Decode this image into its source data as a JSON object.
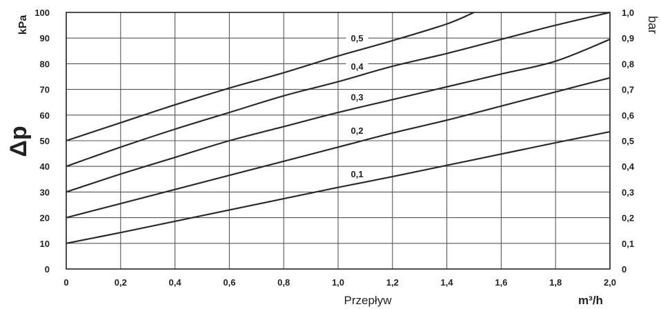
{
  "chart_data": {
    "type": "line",
    "xlabel": "Przepływ",
    "x_unit": "m³/h",
    "ylabel_left": "Δp",
    "ylabel_left_unit": "kPa",
    "ylabel_right_unit": "bar",
    "xlim": [
      0,
      2.0
    ],
    "ylim": [
      0,
      100
    ],
    "y2lim": [
      0,
      1.0
    ],
    "grid": true,
    "x_ticks": [
      "0",
      "0,2",
      "0,4",
      "0,6",
      "0,8",
      "1,0",
      "1,2",
      "1,4",
      "1,6",
      "1,8",
      "2,0"
    ],
    "y_ticks": [
      "0",
      "10",
      "20",
      "30",
      "40",
      "50",
      "60",
      "70",
      "80",
      "90",
      "100"
    ],
    "y2_ticks": [
      "0",
      "0,1",
      "0,2",
      "0,3",
      "0,4",
      "0,5",
      "0,6",
      "0,7",
      "0,8",
      "0,9",
      "1,0"
    ],
    "series": [
      {
        "name": "0,1",
        "x": [
          0,
          0.2,
          0.4,
          0.6,
          0.8,
          1.0,
          1.2,
          1.4,
          1.6,
          1.8,
          2.0
        ],
        "y": [
          10,
          14.2,
          18.6,
          23.0,
          27.4,
          31.8,
          36.0,
          40.4,
          44.8,
          49.2,
          53.5
        ]
      },
      {
        "name": "0,2",
        "x": [
          0,
          0.2,
          0.4,
          0.6,
          0.8,
          1.0,
          1.2,
          1.4,
          1.6,
          1.8,
          2.0
        ],
        "y": [
          20,
          25.5,
          31.0,
          36.5,
          42.0,
          47.5,
          53.0,
          58.0,
          63.5,
          69.0,
          74.5
        ]
      },
      {
        "name": "0,3",
        "x": [
          0,
          0.2,
          0.4,
          0.6,
          0.8,
          1.0,
          1.2,
          1.4,
          1.6,
          1.8,
          2.0
        ],
        "y": [
          30,
          37.0,
          43.5,
          50.0,
          55.5,
          61.0,
          66.0,
          71.0,
          76.0,
          81.0,
          89.5
        ]
      },
      {
        "name": "0,4",
        "x": [
          0,
          0.2,
          0.4,
          0.6,
          0.8,
          1.0,
          1.2,
          1.4,
          1.6,
          1.8,
          2.0
        ],
        "y": [
          40,
          47.5,
          54.5,
          61.0,
          67.5,
          73.0,
          79.0,
          84.0,
          89.5,
          95.0,
          100
        ]
      },
      {
        "name": "0,5",
        "x": [
          0,
          0.2,
          0.4,
          0.6,
          0.8,
          1.0,
          1.2,
          1.4,
          1.5
        ],
        "y": [
          50,
          57.0,
          64.0,
          70.5,
          76.5,
          83.0,
          89.0,
          95.5,
          100
        ]
      }
    ],
    "label_positions_note": "",
    "series_labels": [
      {
        "text": "0,1",
        "x": 1.07,
        "y": 36
      },
      {
        "text": "0,2",
        "x": 1.07,
        "y": 53
      },
      {
        "text": "0,3",
        "x": 1.07,
        "y": 66
      },
      {
        "text": "0,4",
        "x": 1.07,
        "y": 78
      },
      {
        "text": "0,5",
        "x": 1.07,
        "y": 89
      }
    ]
  }
}
